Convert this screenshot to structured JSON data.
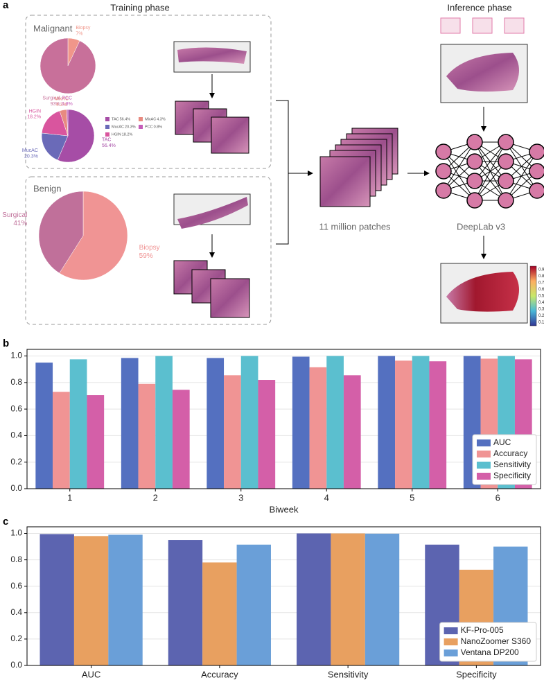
{
  "panels": {
    "a": "a",
    "b": "b",
    "c": "c"
  },
  "diagram": {
    "training_title": "Training phase",
    "inference_title": "Inference phase",
    "malignant": "Malignant",
    "benign": "Benign",
    "patches": "11 million patches",
    "model": "DeepLab v3",
    "colorbar_ticks": [
      0.9,
      0.8,
      0.7,
      0.6,
      0.5,
      0.4,
      0.3,
      0.2,
      0.1
    ]
  },
  "chart_data": [
    {
      "type": "pie",
      "categories": [
        "Biopsy",
        "Surgical"
      ],
      "values": [
        7,
        93
      ],
      "value_labels": [
        "7%",
        "93%"
      ],
      "colors": [
        "#f0968a",
        "#c8709a"
      ]
    },
    {
      "type": "pie",
      "categories": [
        "TAC",
        "MucAC",
        "HGIN",
        "MixAC",
        "PCC"
      ],
      "values": [
        56.4,
        20.3,
        18.2,
        4.3,
        0.8
      ],
      "value_labels": [
        "56.4%",
        "20.3%",
        "18.2%",
        "4.3%",
        "0.8%"
      ],
      "colors": [
        "#a64da6",
        "#6a6ab8",
        "#d9559e",
        "#e88a80",
        "#c45cb8"
      ],
      "legend": true
    },
    {
      "type": "pie",
      "categories": [
        "Biopsy",
        "Surgical"
      ],
      "values": [
        59,
        41
      ],
      "value_labels": [
        "59%",
        "41%"
      ],
      "colors": [
        "#f09494",
        "#c0709a"
      ]
    },
    {
      "type": "bar",
      "categories": [
        "1",
        "2",
        "3",
        "4",
        "5",
        "6"
      ],
      "x_label": "Biweek",
      "series": [
        {
          "name": "AUC",
          "color": "#5470c0",
          "values": [
            0.95,
            0.985,
            0.985,
            0.995,
            1.0,
            1.0
          ]
        },
        {
          "name": "Accuracy",
          "color": "#f09494",
          "values": [
            0.73,
            0.79,
            0.855,
            0.915,
            0.965,
            0.98
          ]
        },
        {
          "name": "Sensitivity",
          "color": "#5bbfcf",
          "values": [
            0.975,
            1.0,
            1.0,
            1.0,
            1.0,
            1.0
          ]
        },
        {
          "name": "Specificity",
          "color": "#d45fa8",
          "values": [
            0.705,
            0.745,
            0.82,
            0.855,
            0.96,
            0.975
          ]
        }
      ],
      "ylim": [
        0,
        1.05
      ],
      "yticks": [
        {
          "value": 0,
          "label": "0.0"
        },
        {
          "value": 0.2,
          "label": "0.2"
        },
        {
          "value": 0.4,
          "label": "0.4"
        },
        {
          "value": 0.6,
          "label": "0.6"
        },
        {
          "value": 0.8,
          "label": "0.8"
        },
        {
          "value": 1,
          "label": "1.0"
        }
      ],
      "grid": true,
      "legend": "lower right"
    },
    {
      "type": "bar",
      "categories": [
        "AUC",
        "Accuracy",
        "Sensitivity",
        "Specificity"
      ],
      "series": [
        {
          "name": "KF-Pro-005",
          "color": "#5c64b0",
          "values": [
            0.995,
            0.95,
            1.0,
            0.915
          ]
        },
        {
          "name": "NanoZoomer S360",
          "color": "#e8a060",
          "values": [
            0.98,
            0.78,
            1.0,
            0.725
          ]
        },
        {
          "name": "Ventana DP200",
          "color": "#6a9fd8",
          "values": [
            0.99,
            0.915,
            0.998,
            0.9
          ]
        }
      ],
      "ylim": [
        0,
        1.05
      ],
      "yticks": [
        {
          "value": 0,
          "label": "0.0"
        },
        {
          "value": 0.2,
          "label": "0.2"
        },
        {
          "value": 0.4,
          "label": "0.4"
        },
        {
          "value": 0.6,
          "label": "0.6"
        },
        {
          "value": 0.8,
          "label": "0.8"
        },
        {
          "value": 1,
          "label": "1.0"
        }
      ],
      "grid": true,
      "legend": "lower right"
    }
  ]
}
